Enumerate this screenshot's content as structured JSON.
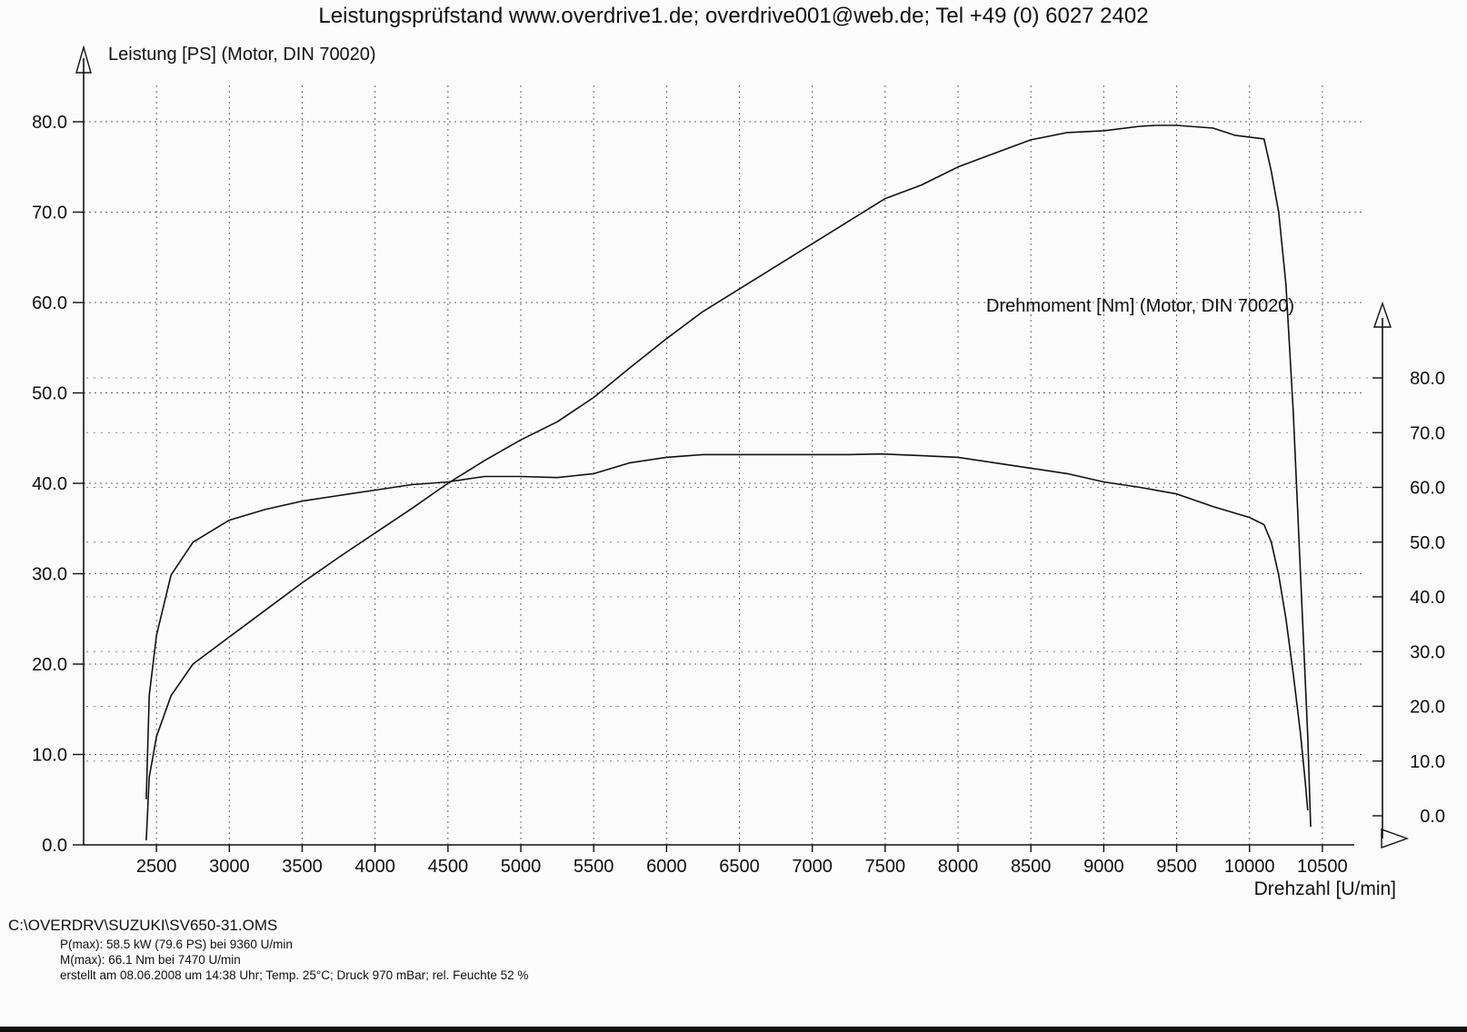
{
  "title": "Leistungsprüfstand www.overdrive1.de; overdrive001@web.de; Tel +49 (0) 6027 2402",
  "footer": {
    "file_path": "C:\\OVERDRV\\SUZUKI\\SV650-31.OMS",
    "pmax": "P(max): 58.5 kW (79.6 PS) bei 9360 U/min",
    "mmax": "M(max): 66.1 Nm bei 7470 U/min",
    "created": "erstellt am 08.06.2008 um 14:38 Uhr; Temp. 25°C; Druck 970 mBar; rel. Feuchte 52 %"
  },
  "chart_data": {
    "type": "line",
    "title": "Leistungsprüfstand www.overdrive1.de; overdrive001@web.de; Tel +49 (0) 6027 2402",
    "xlabel": "Drehzahl [U/min]",
    "ylabel_left": "Leistung [PS] (Motor, DIN 70020)",
    "ylabel_right": "Drehmoment [Nm] (Motor, DIN 70020)",
    "x_ticks": [
      2500,
      3000,
      3500,
      4000,
      4500,
      5000,
      5500,
      6000,
      6500,
      7000,
      7500,
      8000,
      8500,
      9000,
      9500,
      10000,
      10500
    ],
    "y_left_ticks": [
      0,
      10,
      20,
      30,
      40,
      50,
      60,
      70,
      80
    ],
    "y_right_ticks": [
      0,
      10,
      20,
      30,
      40,
      50,
      60,
      70,
      80
    ],
    "xlim": [
      2000,
      10900
    ],
    "ylim_left": [
      0,
      80
    ],
    "ylim_right": [
      0,
      80
    ],
    "grid": true,
    "series": [
      {
        "name": "Leistung [PS] (Motor, DIN 70020)",
        "axis": "left",
        "x": [
          2430,
          2450,
          2500,
          2600,
          2750,
          3000,
          3250,
          3500,
          3750,
          4000,
          4250,
          4500,
          4750,
          5000,
          5250,
          5500,
          5750,
          6000,
          6250,
          6500,
          6750,
          7000,
          7250,
          7500,
          7750,
          8000,
          8250,
          8500,
          8750,
          9000,
          9250,
          9360,
          9500,
          9750,
          9900,
          10000,
          10100,
          10150,
          10200,
          10250,
          10300,
          10350,
          10400,
          10420
        ],
        "y": [
          0.5,
          7.5,
          12.0,
          16.5,
          20.0,
          23.0,
          26.0,
          29.0,
          31.8,
          34.5,
          37.2,
          40.0,
          42.5,
          44.8,
          46.8,
          49.5,
          52.8,
          56.0,
          59.0,
          61.5,
          64.0,
          66.5,
          69.0,
          71.5,
          73.0,
          75.0,
          76.5,
          78.0,
          78.8,
          79.0,
          79.5,
          79.6,
          79.6,
          79.3,
          78.5,
          78.3,
          78.1,
          74.5,
          70.0,
          62.0,
          48.0,
          30.0,
          12.0,
          2.0
        ]
      },
      {
        "name": "Drehmoment [Nm] (Motor, DIN 70020)",
        "axis": "right",
        "x": [
          2430,
          2450,
          2500,
          2600,
          2750,
          3000,
          3250,
          3500,
          3750,
          4000,
          4250,
          4500,
          4750,
          5000,
          5250,
          5500,
          5750,
          6000,
          6250,
          6500,
          6750,
          7000,
          7250,
          7470,
          7750,
          8000,
          8250,
          8500,
          8750,
          9000,
          9250,
          9500,
          9750,
          10000,
          10100,
          10150,
          10200,
          10250,
          10300,
          10350,
          10380,
          10400
        ],
        "y": [
          3.0,
          22.0,
          33.0,
          44.0,
          50.0,
          54.0,
          56.0,
          57.5,
          58.5,
          59.5,
          60.5,
          61.0,
          62.0,
          62.0,
          61.8,
          62.5,
          64.5,
          65.5,
          66.0,
          66.0,
          66.0,
          66.0,
          66.0,
          66.1,
          65.8,
          65.5,
          64.5,
          63.5,
          62.5,
          61.0,
          60.0,
          58.8,
          56.5,
          54.5,
          53.2,
          50.0,
          44.0,
          36.0,
          26.0,
          15.0,
          7.0,
          1.0
        ]
      }
    ]
  }
}
